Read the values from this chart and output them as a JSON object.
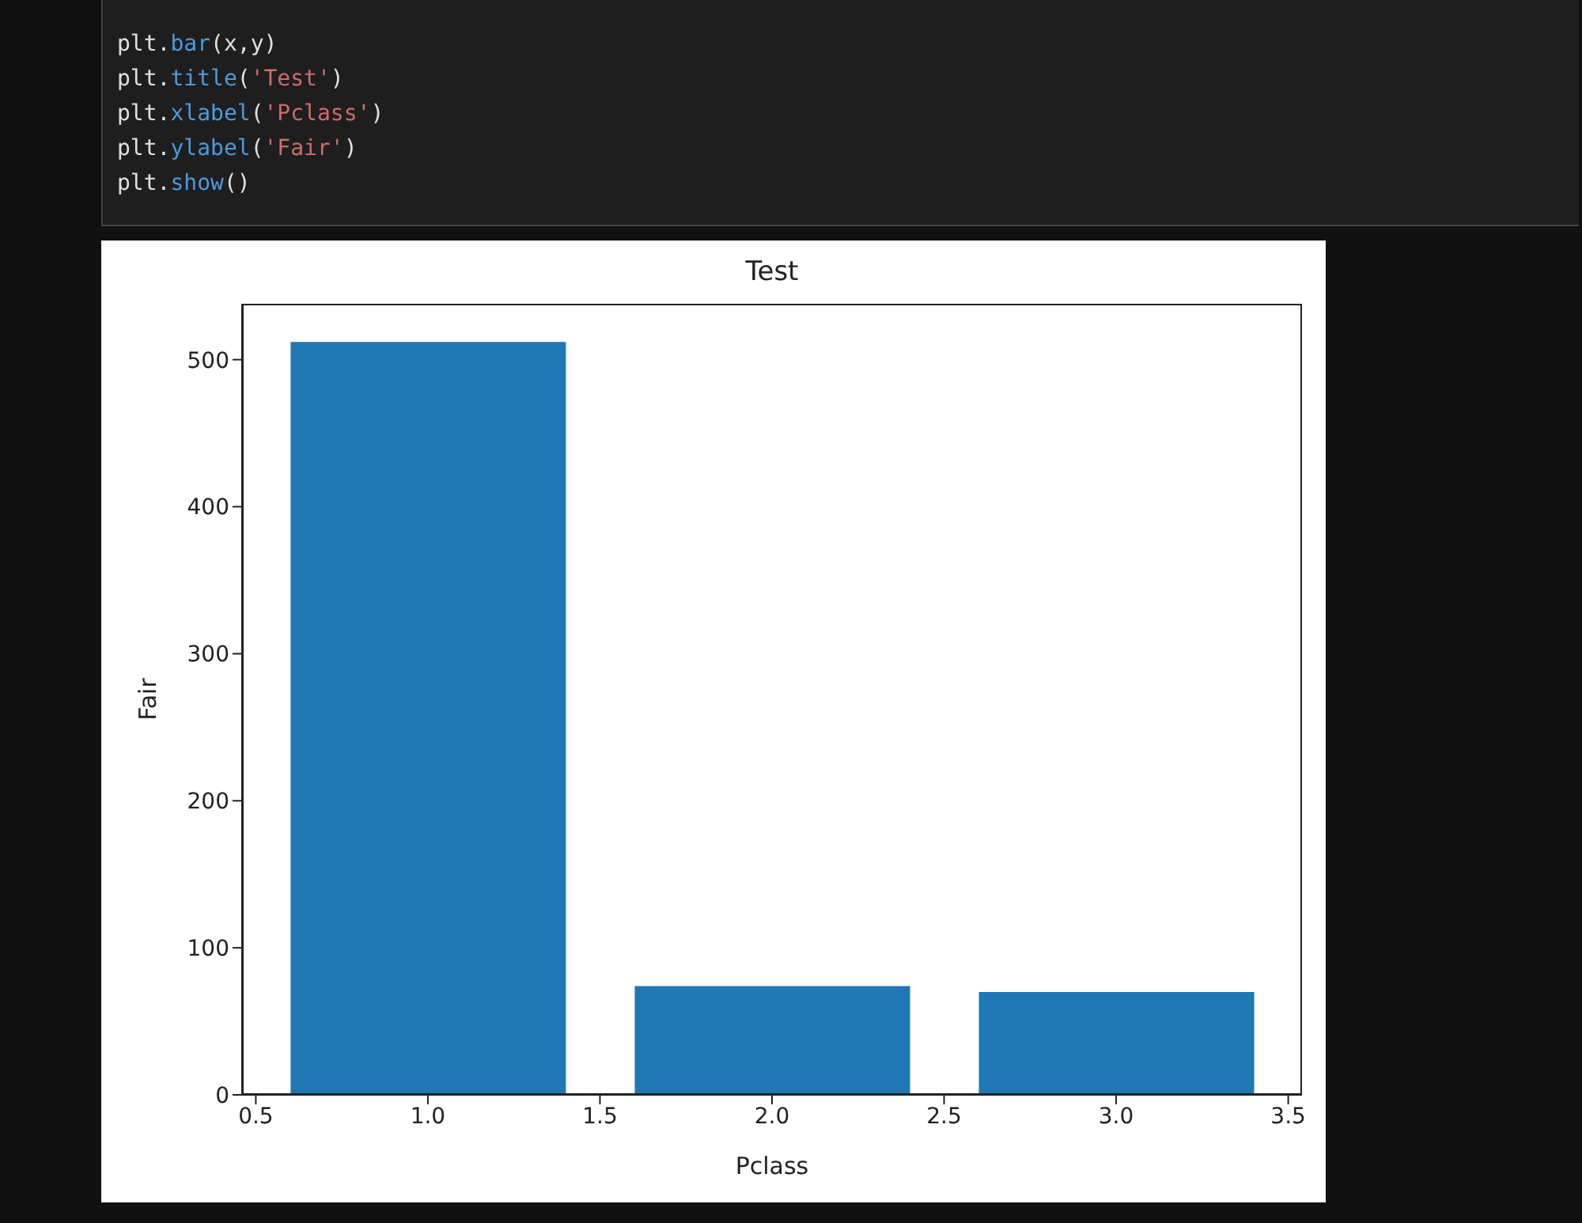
{
  "chart_data": {
    "type": "bar",
    "title": "Test",
    "xlabel": "Pclass",
    "ylabel": "Fair",
    "x": [
      1,
      2,
      3
    ],
    "values": [
      512,
      74,
      70
    ],
    "color": "#1f77b4",
    "xlim": [
      0.46,
      3.54
    ],
    "xticks": [
      {
        "value": 0.5,
        "label": "0.5"
      },
      {
        "value": 1,
        "label": "1.0"
      },
      {
        "value": 1.5,
        "label": "1.5"
      },
      {
        "value": 2,
        "label": "2.0"
      },
      {
        "value": 2.5,
        "label": "2.5"
      },
      {
        "value": 3,
        "label": "3.0"
      },
      {
        "value": 3.5,
        "label": "3.5"
      }
    ],
    "ylim": [
      0,
      538
    ],
    "yticks": [
      0,
      100,
      200,
      300,
      400,
      500
    ],
    "grid": false,
    "legend": false,
    "annotations": [
      "plt.bar(x,y)",
      "plt.title('Test')",
      "plt.xlabel('Pclass')",
      "plt.ylabel('Fair')",
      "plt.show()"
    ]
  }
}
